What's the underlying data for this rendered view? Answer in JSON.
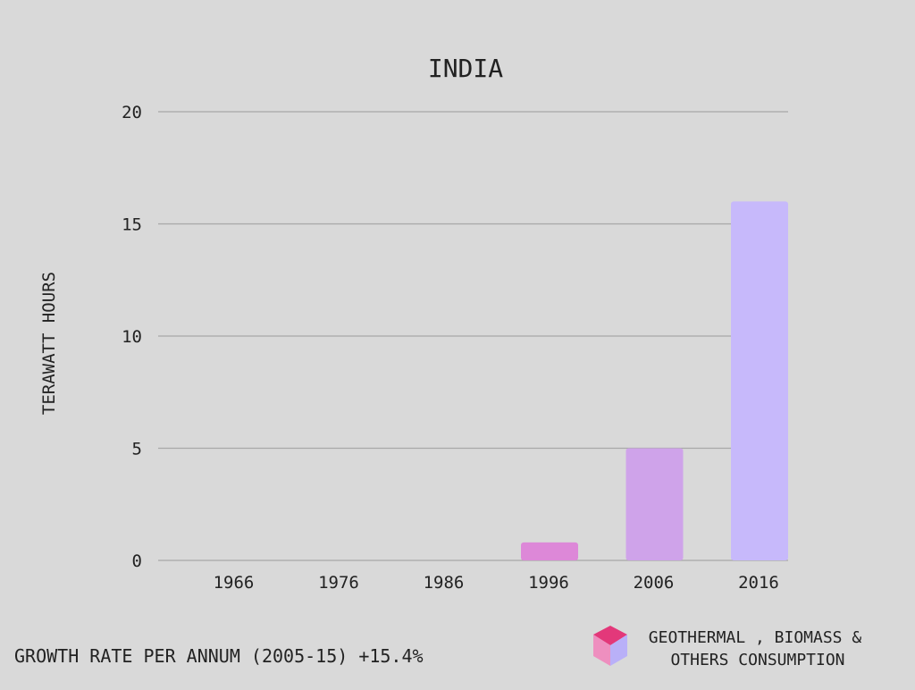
{
  "chart_data": {
    "type": "bar",
    "title": "INDIA",
    "ylabel": "TERAWATT HOURS",
    "xlabel": "",
    "categories": [
      "1966",
      "1976",
      "1986",
      "1996",
      "2006",
      "2016"
    ],
    "series": [
      {
        "name": "GEOTHERMAL , BIOMASS & OTHERS CONSUMPTION",
        "values": [
          0,
          0,
          0,
          0.8,
          5,
          16
        ]
      }
    ],
    "bar_colors": [
      "#dd88d8",
      "#dd88d8",
      "#dd88d8",
      "#dd88d8",
      "#cfa3ea",
      "#c7b9fb"
    ],
    "ylim": [
      0,
      20
    ],
    "yticks": [
      0,
      5,
      10,
      15,
      20
    ],
    "grid": true,
    "legend_position": "bottom-right"
  },
  "footer": {
    "growth_rate": "GROWTH RATE PER ANNUM (2005-15) +15.4%"
  },
  "legend": {
    "line1": "GEOTHERMAL , BIOMASS &",
    "line2": "OTHERS CONSUMPTION",
    "icon": "cube-icon",
    "icon_colors": {
      "top": "#e3387a",
      "left": "#ee8fbf",
      "right": "#b9b0f8"
    }
  },
  "colors": {
    "background": "#d9d9d9",
    "grid": "#a8a8a8",
    "text": "#222222"
  }
}
